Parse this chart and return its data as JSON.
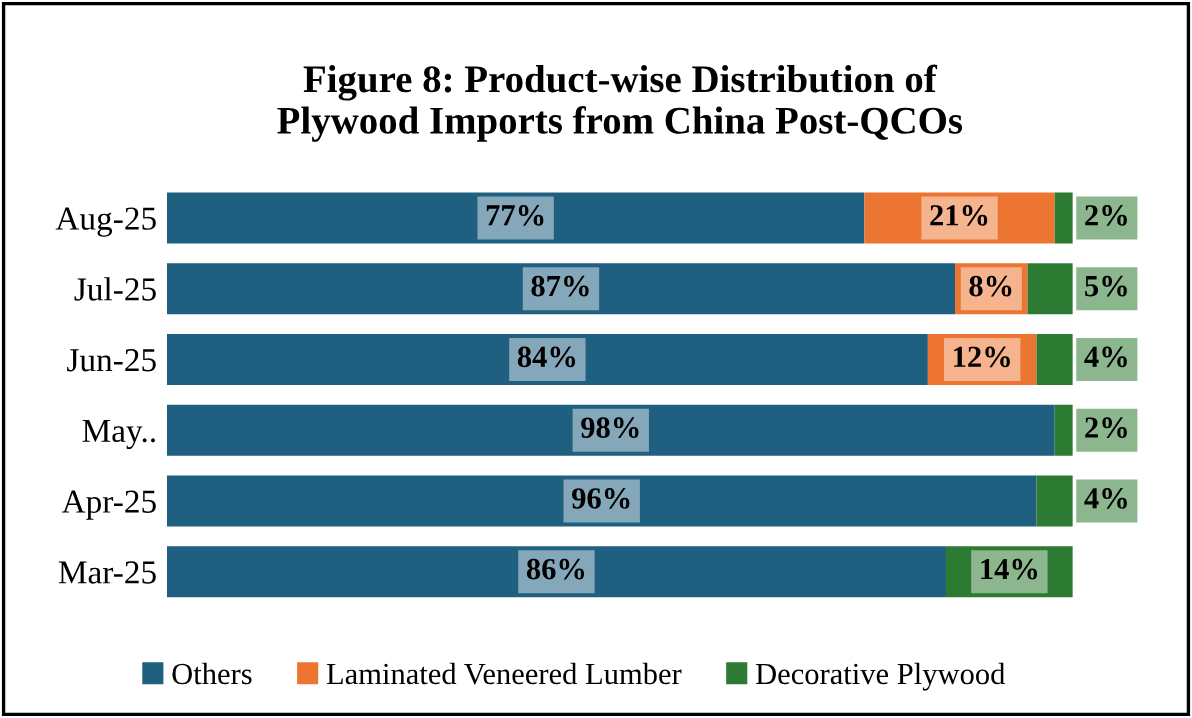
{
  "chart_data": {
    "type": "bar",
    "orientation": "horizontal",
    "stacked": true,
    "title": "Figure 8: Product-wise Distribution of\nPlywood Imports from China Post-QCOs",
    "categories": [
      "Aug-25",
      "Jul-25",
      "Jun-25",
      "May..",
      "Apr-25",
      "Mar-25"
    ],
    "series": [
      {
        "name": "Others",
        "color": "#1f5f7f",
        "values": [
          77,
          87,
          84,
          98,
          96,
          86
        ],
        "value_labels": [
          "77%",
          "87%",
          "84%",
          "98%",
          "96%",
          "86%"
        ]
      },
      {
        "name": "Laminated Veneered Lumber",
        "color": "#ed7532",
        "values": [
          21,
          8,
          12,
          0,
          0,
          0
        ],
        "value_labels": [
          "21%",
          "8%",
          "12%",
          null,
          null,
          null
        ]
      },
      {
        "name": "Decorative Plywood",
        "color": "#2d7a32",
        "values": [
          2,
          5,
          4,
          2,
          4,
          14
        ],
        "value_labels": [
          "2%",
          "5%",
          "4%",
          "2%",
          "4%",
          "14%"
        ]
      }
    ],
    "legend": "bottom",
    "grid": false
  }
}
